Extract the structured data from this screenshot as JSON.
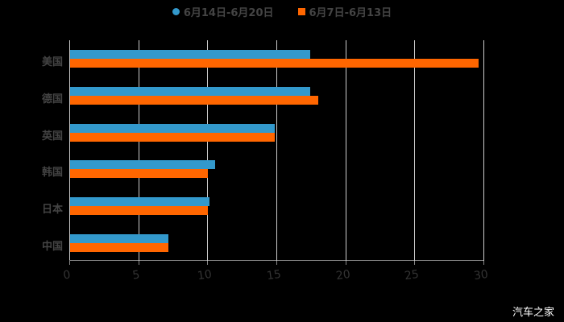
{
  "chart_data": {
    "type": "bar",
    "orientation": "horizontal",
    "categories": [
      "美国",
      "德国",
      "英国",
      "韩国",
      "日本",
      "中国"
    ],
    "series": [
      {
        "name": "6月14日-6月20日",
        "color": "#3399cc",
        "values": [
          17.4,
          17.4,
          14.8,
          10.5,
          10.1,
          7.1
        ]
      },
      {
        "name": "6月7日-6月13日",
        "color": "#ff6600",
        "values": [
          29.6,
          18.0,
          14.8,
          10.0,
          10.0,
          7.1
        ]
      }
    ],
    "title": "",
    "xlabel": "",
    "ylabel": "",
    "xlim": [
      0,
      30
    ],
    "xticks": [
      "0",
      "5",
      "10",
      "15",
      "20",
      "25",
      "30"
    ],
    "grid": "vertical",
    "legend_position": "top"
  },
  "legend": [
    {
      "label": "6月14日-6月20日",
      "color": "#3399cc",
      "shape": "circle"
    },
    {
      "label": "6月7日-6月13日",
      "color": "#ff6600",
      "shape": "square"
    }
  ],
  "watermark": "汽车之家"
}
